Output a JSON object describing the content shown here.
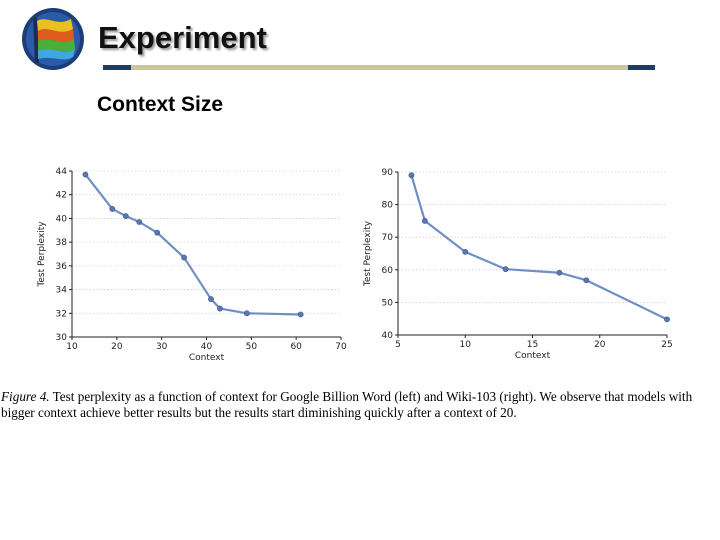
{
  "slide": {
    "title": "Experiment",
    "subtitle": "Context Size"
  },
  "caption": {
    "figure_label": "Figure 4.",
    "text": "Test perplexity as a function of context for Google Billion Word (left) and Wiki-103 (right).  We observe that models with bigger context achieve better results but the results start diminishing quickly after a context of 20."
  },
  "colors": {
    "line": "#6f8fc4",
    "marker": "#5a77b0",
    "rule_dark": "#1f3b6e",
    "rule_light": "#c8c89a"
  },
  "chart_data": [
    {
      "type": "line",
      "xlabel": "Context",
      "ylabel": "Test Perplexity",
      "xlim": [
        10,
        70
      ],
      "ylim": [
        30,
        44
      ],
      "xticks": [
        10,
        20,
        30,
        40,
        50,
        60,
        70
      ],
      "yticks": [
        30,
        32,
        34,
        36,
        38,
        40,
        42,
        44
      ],
      "grid": "horizontal dotted",
      "x": [
        13,
        19,
        22,
        25,
        29,
        35,
        41,
        43,
        49,
        61
      ],
      "y": [
        43.7,
        40.8,
        40.2,
        39.7,
        38.8,
        36.7,
        33.2,
        32.4,
        32.0,
        31.9
      ]
    },
    {
      "type": "line",
      "xlabel": "Context",
      "ylabel": "Test Perplexity",
      "xlim": [
        5,
        25
      ],
      "ylim": [
        40,
        90
      ],
      "xticks": [
        5,
        10,
        15,
        20,
        25
      ],
      "yticks": [
        40,
        50,
        60,
        70,
        80,
        90
      ],
      "grid": "horizontal dotted",
      "x": [
        6,
        7,
        10,
        13,
        17,
        19,
        25
      ],
      "y": [
        89,
        75,
        65.5,
        60.2,
        59.1,
        56.8,
        44.8
      ]
    }
  ]
}
